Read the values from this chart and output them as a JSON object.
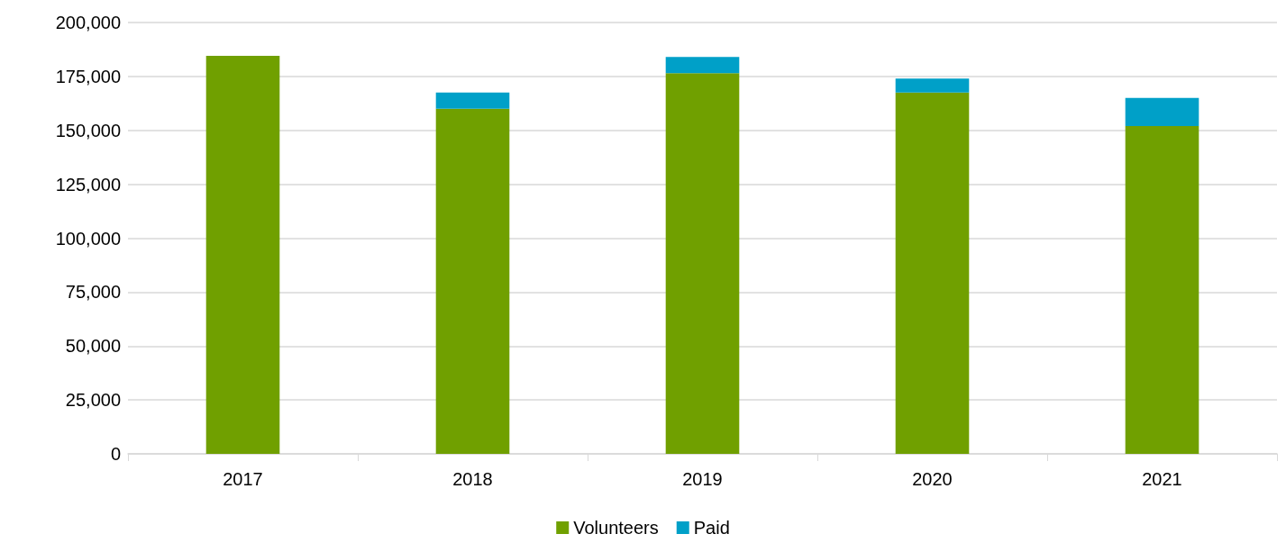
{
  "chart_data": {
    "type": "bar",
    "stacked": true,
    "categories": [
      "2017",
      "2018",
      "2019",
      "2020",
      "2021"
    ],
    "series": [
      {
        "name": "Volunteers",
        "color": "#70a000",
        "values": [
          184500,
          160000,
          176500,
          167500,
          152000
        ]
      },
      {
        "name": "Paid",
        "color": "#00a0c8",
        "values": [
          null,
          7500,
          7500,
          6500,
          13000
        ]
      }
    ],
    "ylim": [
      0,
      200000
    ],
    "yticks": [
      0,
      {
        "value": 25000,
        "label": "25,000"
      },
      {
        "value": 50000,
        "label": "50,000"
      },
      {
        "value": 75000,
        "label": "75,000"
      },
      {
        "value": 100000,
        "label": "100,000"
      },
      {
        "value": 125000,
        "label": "125,000"
      },
      {
        "value": 150000,
        "label": "150,000"
      },
      {
        "value": 175000,
        "label": "175,000"
      },
      {
        "value": 200000,
        "label": "200,000"
      }
    ],
    "grid": "y",
    "legend": "bottom"
  }
}
